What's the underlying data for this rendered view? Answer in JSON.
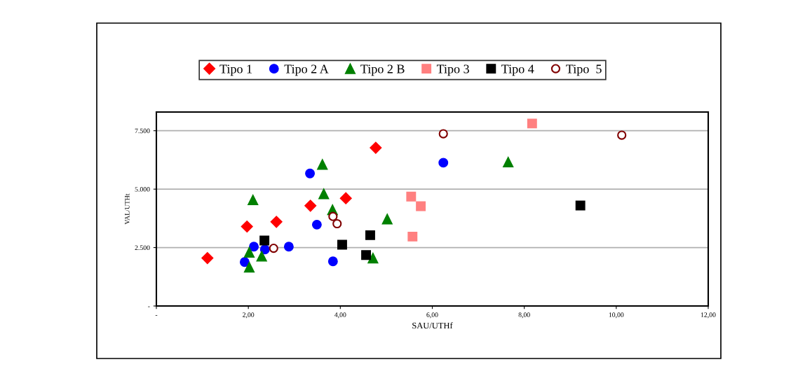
{
  "chart_data": {
    "type": "scatter",
    "xlabel": "SAU/UTHf",
    "ylabel": "VAL/UTHt",
    "xlim": [
      0,
      12
    ],
    "xticks": [
      {
        "value": 0,
        "label": "-"
      },
      {
        "value": 2,
        "label": "2,00"
      },
      {
        "value": 4,
        "label": "4,00"
      },
      {
        "value": 6,
        "label": "6,00"
      },
      {
        "value": 8,
        "label": "8,00"
      },
      {
        "value": 10,
        "label": "10,00"
      },
      {
        "value": 12,
        "label": "12,00"
      }
    ],
    "ylim": [
      0,
      8300
    ],
    "yticks": [
      {
        "value": 0,
        "label": "-"
      },
      {
        "value": 2500,
        "label": "2.500"
      },
      {
        "value": 5000,
        "label": "5.000"
      },
      {
        "value": 7500,
        "label": "7.500"
      }
    ],
    "grid": "y",
    "legend": "top",
    "series": [
      {
        "name": "Tipo 1",
        "color": "#ff0000",
        "marker": "diamond",
        "x": [
          1.11,
          1.97,
          2.61,
          3.35,
          4.12,
          4.77
        ],
        "values": [
          2050,
          3400,
          3600,
          4290,
          4610,
          6770
        ]
      },
      {
        "name": "Tipo 2 A",
        "color": "#0000ff",
        "marker": "circle",
        "x": [
          1.92,
          2.12,
          2.36,
          2.88,
          3.34,
          3.49,
          3.84,
          6.24
        ],
        "values": [
          1880,
          2540,
          2420,
          2540,
          5670,
          3480,
          1910,
          6130
        ]
      },
      {
        "name": "Tipo 2 B",
        "color": "#008000",
        "marker": "triangle",
        "x": [
          2.1,
          2.02,
          2.29,
          2.02,
          3.61,
          3.64,
          3.83,
          5.02,
          4.71,
          7.65
        ],
        "values": [
          4540,
          2300,
          2130,
          1660,
          6060,
          4800,
          4120,
          3720,
          2050,
          6160
        ]
      },
      {
        "name": "Tipo 3",
        "color": "#ff8080",
        "marker": "square",
        "x": [
          5.54,
          5.75,
          5.57,
          8.17
        ],
        "values": [
          4680,
          4270,
          2970,
          7810
        ]
      },
      {
        "name": "Tipo 4",
        "color": "#000000",
        "marker": "square",
        "x": [
          2.35,
          4.04,
          4.65,
          4.56,
          9.22
        ],
        "values": [
          2800,
          2620,
          3030,
          2180,
          4300
        ]
      },
      {
        "name": "Tipo  5",
        "color": "#800000",
        "marker": "circle_open",
        "x": [
          2.55,
          3.84,
          3.93,
          6.24,
          10.12
        ],
        "values": [
          2470,
          3830,
          3520,
          7370,
          7310
        ]
      }
    ]
  }
}
